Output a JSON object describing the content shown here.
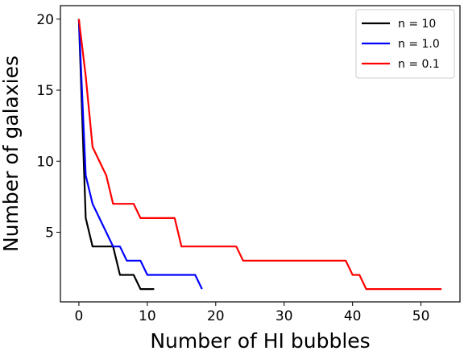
{
  "chart_data": {
    "type": "line",
    "xlabel": "Number of HI bubbles",
    "ylabel": "Number of galaxies",
    "xlim": [
      -2.7,
      55.7
    ],
    "ylim": [
      0.1,
      20.95
    ],
    "xticks": [
      0,
      10,
      20,
      30,
      40,
      50
    ],
    "yticks": [
      5,
      10,
      15,
      20
    ],
    "grid": false,
    "legend_position": "top-right",
    "series": [
      {
        "name": "n = 10",
        "color": "#000000",
        "x": [
          0,
          1,
          2,
          5,
          6,
          7,
          8,
          9,
          10,
          11
        ],
        "y": [
          20,
          6,
          4,
          4,
          2,
          2,
          2,
          1,
          1,
          1
        ]
      },
      {
        "name": "n = 1.0",
        "color": "#0000ff",
        "x": [
          0,
          1,
          2,
          5,
          6,
          7,
          9,
          10,
          17,
          18
        ],
        "y": [
          20,
          9,
          7,
          4,
          4,
          3,
          3,
          2,
          2,
          1
        ]
      },
      {
        "name": "n = 0.1",
        "color": "#ff0000",
        "x": [
          0,
          1,
          2,
          4,
          5,
          8,
          9,
          14,
          15,
          23,
          24,
          39,
          40,
          41,
          42,
          53
        ],
        "y": [
          20,
          16,
          11,
          9,
          7,
          7,
          6,
          6,
          4,
          4,
          3,
          3,
          2,
          2,
          1,
          1
        ]
      }
    ]
  }
}
